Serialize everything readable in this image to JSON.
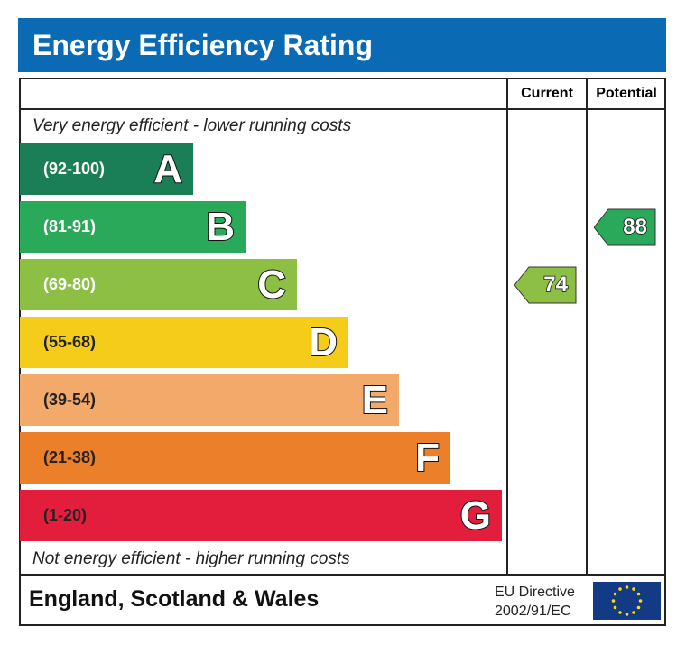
{
  "title": "Energy Efficiency Rating",
  "columns": {
    "current": "Current",
    "potential": "Potential"
  },
  "top_note": "Very energy efficient - lower running costs",
  "bottom_note": "Not energy efficient - higher running costs",
  "footer": {
    "region": "England, Scotland & Wales",
    "directive_line1": "EU Directive",
    "directive_line2": "2002/91/EC",
    "flag": "eu-flag-icon"
  },
  "chart_data": {
    "type": "bar",
    "title": "Energy Efficiency Rating",
    "categories": [
      "A",
      "B",
      "C",
      "D",
      "E",
      "F",
      "G"
    ],
    "bands": [
      {
        "letter": "A",
        "range": "(92-100)",
        "min": 92,
        "max": 100,
        "color": "#1a7f56"
      },
      {
        "letter": "B",
        "range": "(81-91)",
        "min": 81,
        "max": 91,
        "color": "#2ba95a"
      },
      {
        "letter": "C",
        "range": "(69-80)",
        "min": 69,
        "max": 80,
        "color": "#8cbf44"
      },
      {
        "letter": "D",
        "range": "(55-68)",
        "min": 55,
        "max": 68,
        "color": "#f5cc1a"
      },
      {
        "letter": "E",
        "range": "(39-54)",
        "min": 39,
        "max": 54,
        "color": "#f2a96a"
      },
      {
        "letter": "F",
        "range": "(21-38)",
        "min": 21,
        "max": 38,
        "color": "#ec7f2a"
      },
      {
        "letter": "G",
        "range": "(1-20)",
        "min": 1,
        "max": 20,
        "color": "#e21e3c"
      }
    ],
    "current": {
      "value": 74,
      "band": "C",
      "color": "#8cbf44"
    },
    "potential": {
      "value": 88,
      "band": "B",
      "color": "#2ba95a"
    }
  }
}
